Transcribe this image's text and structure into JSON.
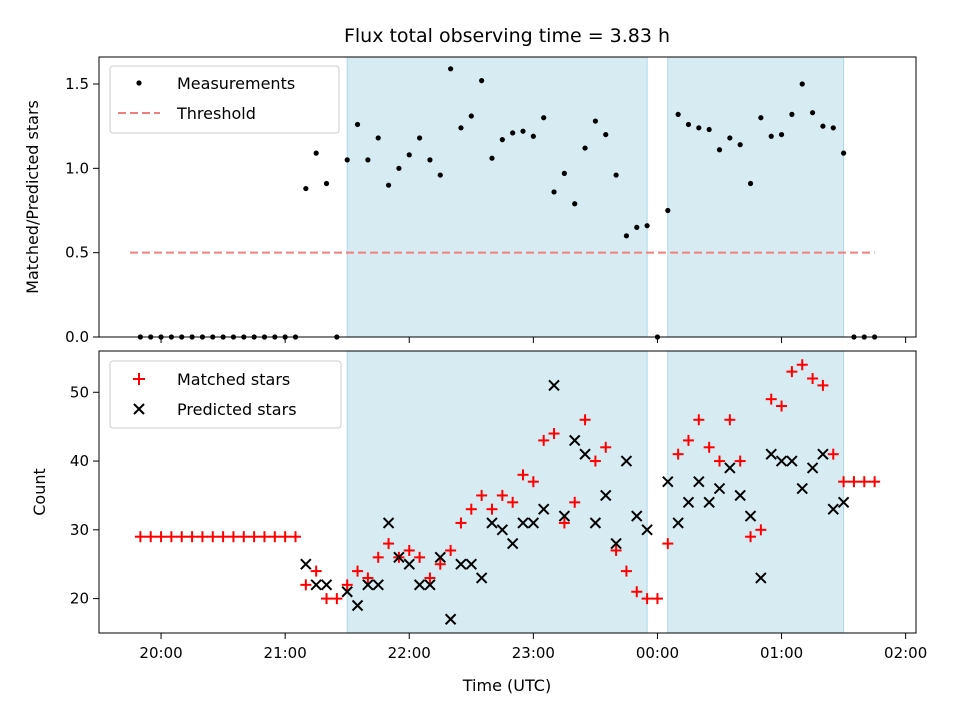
{
  "chart_data": [
    {
      "type": "scatter",
      "title": "Flux total observing time = 3.83 h",
      "xlabel": "",
      "ylabel": "Matched/Predicted stars",
      "x_unit": "UTC time (HH:MM, spans midnight)",
      "xlim": [
        "19:30",
        "02:05"
      ],
      "ylim": [
        0,
        1.66
      ],
      "yticks": [
        0.0,
        0.5,
        1.0,
        1.5
      ],
      "ytick_labels": [
        "0.0",
        "0.5",
        "1.0",
        "1.5"
      ],
      "legend": {
        "placement": "upper-left",
        "entries": [
          "Measurements",
          "Threshold"
        ]
      },
      "shaded_spans": [
        [
          "21:30",
          "23:55"
        ],
        [
          "00:05",
          "01:30"
        ]
      ],
      "threshold": {
        "name": "Threshold",
        "value": 0.5,
        "x_range": [
          "19:45",
          "01:45"
        ],
        "color": "#f08080"
      },
      "series": [
        {
          "name": "Measurements",
          "marker": "dot",
          "color": "#000000",
          "points": [
            [
              "19:50",
              0
            ],
            [
              "19:55",
              0
            ],
            [
              "20:00",
              0
            ],
            [
              "20:05",
              0
            ],
            [
              "20:10",
              0
            ],
            [
              "20:15",
              0
            ],
            [
              "20:20",
              0
            ],
            [
              "20:25",
              0
            ],
            [
              "20:30",
              0
            ],
            [
              "20:35",
              0
            ],
            [
              "20:40",
              0
            ],
            [
              "20:45",
              0
            ],
            [
              "20:50",
              0
            ],
            [
              "20:55",
              0
            ],
            [
              "21:00",
              0
            ],
            [
              "21:05",
              0
            ],
            [
              "21:10",
              0.88
            ],
            [
              "21:15",
              1.09
            ],
            [
              "21:20",
              0.91
            ],
            [
              "21:25",
              0
            ],
            [
              "21:30",
              1.05
            ],
            [
              "21:35",
              1.26
            ],
            [
              "21:40",
              1.05
            ],
            [
              "21:45",
              1.18
            ],
            [
              "21:50",
              0.9
            ],
            [
              "21:55",
              1.0
            ],
            [
              "22:00",
              1.08
            ],
            [
              "22:05",
              1.18
            ],
            [
              "22:10",
              1.05
            ],
            [
              "22:15",
              0.96
            ],
            [
              "22:20",
              1.59
            ],
            [
              "22:25",
              1.24
            ],
            [
              "22:30",
              1.31
            ],
            [
              "22:35",
              1.52
            ],
            [
              "22:40",
              1.06
            ],
            [
              "22:45",
              1.17
            ],
            [
              "22:50",
              1.21
            ],
            [
              "22:55",
              1.22
            ],
            [
              "23:00",
              1.19
            ],
            [
              "23:05",
              1.3
            ],
            [
              "23:10",
              0.86
            ],
            [
              "23:15",
              0.97
            ],
            [
              "23:20",
              0.79
            ],
            [
              "23:25",
              1.12
            ],
            [
              "23:30",
              1.28
            ],
            [
              "23:35",
              1.2
            ],
            [
              "23:40",
              0.96
            ],
            [
              "23:45",
              0.6
            ],
            [
              "23:50",
              0.65
            ],
            [
              "23:55",
              0.66
            ],
            [
              "00:00",
              0
            ],
            [
              "00:05",
              0.75
            ],
            [
              "00:10",
              1.32
            ],
            [
              "00:15",
              1.26
            ],
            [
              "00:20",
              1.24
            ],
            [
              "00:25",
              1.23
            ],
            [
              "00:30",
              1.11
            ],
            [
              "00:35",
              1.18
            ],
            [
              "00:40",
              1.14
            ],
            [
              "00:45",
              0.91
            ],
            [
              "00:50",
              1.3
            ],
            [
              "00:55",
              1.19
            ],
            [
              "01:00",
              1.2
            ],
            [
              "01:05",
              1.32
            ],
            [
              "01:10",
              1.5
            ],
            [
              "01:15",
              1.33
            ],
            [
              "01:20",
              1.25
            ],
            [
              "01:25",
              1.24
            ],
            [
              "01:30",
              1.09
            ],
            [
              "01:35",
              0
            ],
            [
              "01:40",
              0
            ],
            [
              "01:45",
              0
            ]
          ]
        }
      ]
    },
    {
      "type": "scatter",
      "title": "",
      "xlabel": "Time (UTC)",
      "ylabel": "Count",
      "x_unit": "UTC time (HH:MM, spans midnight)",
      "xlim": [
        "19:30",
        "02:05"
      ],
      "ylim": [
        15,
        56
      ],
      "yticks": [
        20,
        30,
        40,
        50
      ],
      "ytick_labels": [
        "20",
        "30",
        "40",
        "50"
      ],
      "xticks": [
        "20:00",
        "21:00",
        "22:00",
        "23:00",
        "00:00",
        "01:00",
        "02:00"
      ],
      "xtick_labels": [
        "20:00",
        "21:00",
        "22:00",
        "23:00",
        "00:00",
        "01:00",
        "02:00"
      ],
      "legend": {
        "placement": "upper-left",
        "entries": [
          "Matched stars",
          "Predicted stars"
        ]
      },
      "shaded_spans": [
        [
          "21:30",
          "23:55"
        ],
        [
          "00:05",
          "01:30"
        ]
      ],
      "series": [
        {
          "name": "Matched stars",
          "marker": "plus",
          "color": "#ff0000",
          "points": [
            [
              "19:50",
              29
            ],
            [
              "19:55",
              29
            ],
            [
              "20:00",
              29
            ],
            [
              "20:05",
              29
            ],
            [
              "20:10",
              29
            ],
            [
              "20:15",
              29
            ],
            [
              "20:20",
              29
            ],
            [
              "20:25",
              29
            ],
            [
              "20:30",
              29
            ],
            [
              "20:35",
              29
            ],
            [
              "20:40",
              29
            ],
            [
              "20:45",
              29
            ],
            [
              "20:50",
              29
            ],
            [
              "20:55",
              29
            ],
            [
              "21:00",
              29
            ],
            [
              "21:05",
              29
            ],
            [
              "21:10",
              22
            ],
            [
              "21:15",
              24
            ],
            [
              "21:20",
              20
            ],
            [
              "21:25",
              20
            ],
            [
              "21:30",
              22
            ],
            [
              "21:35",
              24
            ],
            [
              "21:40",
              23
            ],
            [
              "21:45",
              26
            ],
            [
              "21:50",
              28
            ],
            [
              "21:55",
              26
            ],
            [
              "22:00",
              27
            ],
            [
              "22:05",
              26
            ],
            [
              "22:10",
              23
            ],
            [
              "22:15",
              25
            ],
            [
              "22:20",
              27
            ],
            [
              "22:25",
              31
            ],
            [
              "22:30",
              33
            ],
            [
              "22:35",
              35
            ],
            [
              "22:40",
              33
            ],
            [
              "22:45",
              35
            ],
            [
              "22:50",
              34
            ],
            [
              "22:55",
              38
            ],
            [
              "23:00",
              37
            ],
            [
              "23:05",
              43
            ],
            [
              "23:10",
              44
            ],
            [
              "23:15",
              31
            ],
            [
              "23:20",
              34
            ],
            [
              "23:25",
              46
            ],
            [
              "23:30",
              40
            ],
            [
              "23:35",
              42
            ],
            [
              "23:40",
              27
            ],
            [
              "23:45",
              24
            ],
            [
              "23:50",
              21
            ],
            [
              "23:55",
              20
            ],
            [
              "00:00",
              20
            ],
            [
              "00:05",
              28
            ],
            [
              "00:10",
              41
            ],
            [
              "00:15",
              43
            ],
            [
              "00:20",
              46
            ],
            [
              "00:25",
              42
            ],
            [
              "00:30",
              40
            ],
            [
              "00:35",
              46
            ],
            [
              "00:40",
              40
            ],
            [
              "00:45",
              29
            ],
            [
              "00:50",
              30
            ],
            [
              "00:55",
              49
            ],
            [
              "01:00",
              48
            ],
            [
              "01:05",
              53
            ],
            [
              "01:10",
              54
            ],
            [
              "01:15",
              52
            ],
            [
              "01:20",
              51
            ],
            [
              "01:25",
              41
            ],
            [
              "01:30",
              37
            ],
            [
              "01:35",
              37
            ],
            [
              "01:40",
              37
            ],
            [
              "01:45",
              37
            ]
          ]
        },
        {
          "name": "Predicted stars",
          "marker": "x",
          "color": "#000000",
          "points": [
            [
              "21:10",
              25
            ],
            [
              "21:15",
              22
            ],
            [
              "21:20",
              22
            ],
            [
              "21:30",
              21
            ],
            [
              "21:35",
              19
            ],
            [
              "21:40",
              22
            ],
            [
              "21:45",
              22
            ],
            [
              "21:50",
              31
            ],
            [
              "21:55",
              26
            ],
            [
              "22:00",
              25
            ],
            [
              "22:05",
              22
            ],
            [
              "22:10",
              22
            ],
            [
              "22:15",
              26
            ],
            [
              "22:20",
              17
            ],
            [
              "22:25",
              25
            ],
            [
              "22:30",
              25
            ],
            [
              "22:35",
              23
            ],
            [
              "22:40",
              31
            ],
            [
              "22:45",
              30
            ],
            [
              "22:50",
              28
            ],
            [
              "22:55",
              31
            ],
            [
              "23:00",
              31
            ],
            [
              "23:05",
              33
            ],
            [
              "23:10",
              51
            ],
            [
              "23:15",
              32
            ],
            [
              "23:20",
              43
            ],
            [
              "23:25",
              41
            ],
            [
              "23:30",
              31
            ],
            [
              "23:35",
              35
            ],
            [
              "23:40",
              28
            ],
            [
              "23:45",
              40
            ],
            [
              "23:50",
              32
            ],
            [
              "23:55",
              30
            ],
            [
              "00:05",
              37
            ],
            [
              "00:10",
              31
            ],
            [
              "00:15",
              34
            ],
            [
              "00:20",
              37
            ],
            [
              "00:25",
              34
            ],
            [
              "00:30",
              36
            ],
            [
              "00:35",
              39
            ],
            [
              "00:40",
              35
            ],
            [
              "00:45",
              32
            ],
            [
              "00:50",
              23
            ],
            [
              "00:55",
              41
            ],
            [
              "01:00",
              40
            ],
            [
              "01:05",
              40
            ],
            [
              "01:10",
              36
            ],
            [
              "01:15",
              39
            ],
            [
              "01:20",
              41
            ],
            [
              "01:25",
              33
            ],
            [
              "01:30",
              34
            ]
          ]
        }
      ]
    }
  ]
}
